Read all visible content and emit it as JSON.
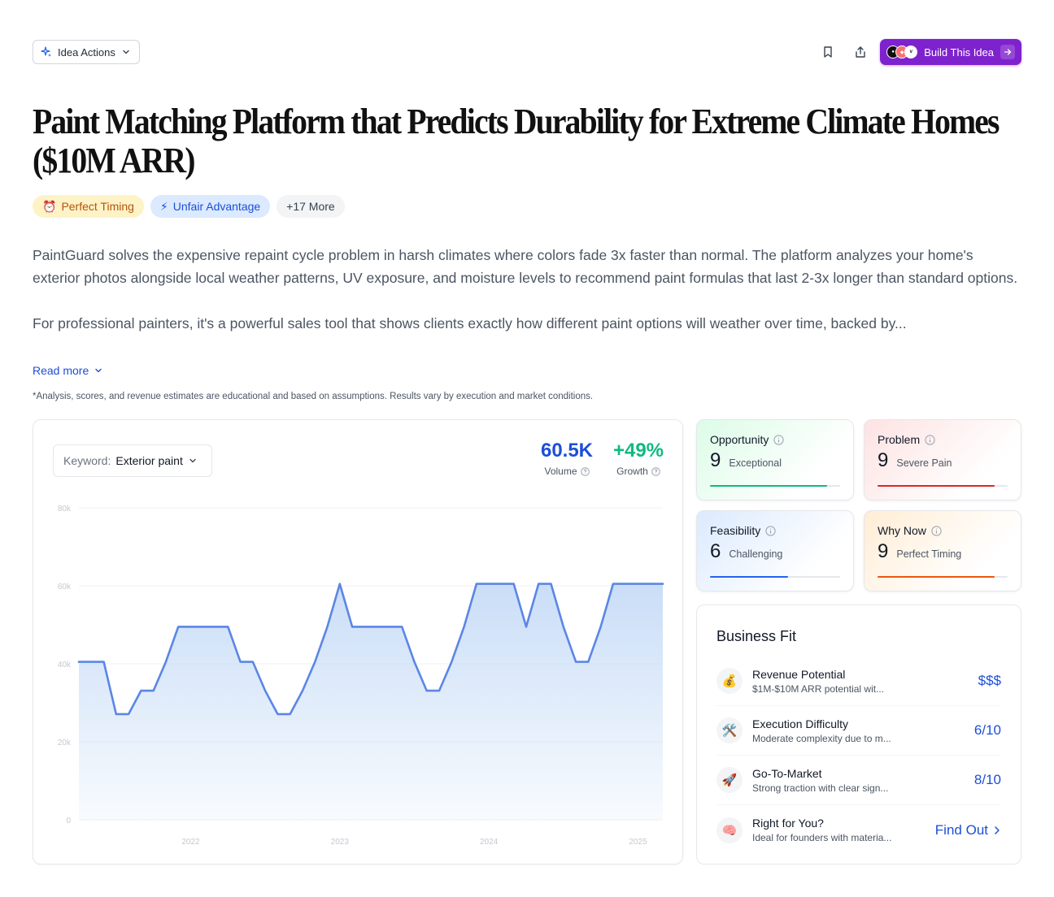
{
  "toolbar": {
    "idea_actions_label": "Idea Actions",
    "build_label": "Build This Idea"
  },
  "title": {
    "line1": "Paint Matching Platform that Predicts Durability for Extreme Climate Homes",
    "line2": "($10M ARR)"
  },
  "tags": [
    {
      "icon": "⏰",
      "label": "Perfect Timing"
    },
    {
      "icon": "⚡",
      "label": "Unfair Advantage"
    },
    {
      "label": "+17 More"
    }
  ],
  "description": {
    "p1": "PaintGuard solves the expensive repaint cycle problem in harsh climates where colors fade 3x faster than normal. The platform analyzes your home's exterior photos alongside local weather patterns, UV exposure, and moisture levels to recommend paint formulas that last 2-3x longer than standard options.",
    "p2": "For professional painters, it's a powerful sales tool that shows clients exactly how different paint options will weather over time, backed by...",
    "read_more": "Read more"
  },
  "disclaimer": "*Analysis, scores, and revenue estimates are educational and based on assumptions. Results vary by execution and market conditions.",
  "keyword": {
    "label": "Keyword:",
    "value": "Exterior paint"
  },
  "metrics": {
    "volume": {
      "value": "60.5K",
      "label": "Volume"
    },
    "growth": {
      "value": "+49%",
      "label": "Growth"
    }
  },
  "chart_data": {
    "type": "area",
    "title": "",
    "xlabel": "",
    "ylabel": "",
    "ylim": [
      0,
      80000
    ],
    "y_ticks": [
      "0",
      "20k",
      "40k",
      "60k",
      "80k"
    ],
    "x_ticks": [
      "2022",
      "2023",
      "2024",
      "2025"
    ],
    "x_range": [
      "2021-07",
      "2025-06"
    ],
    "grid": true,
    "color": "#5b86e5",
    "fill_color": "#c7dcf7",
    "series": [
      {
        "x": [
          "2021-07",
          "2021-08",
          "2021-09",
          "2021-10",
          "2021-11",
          "2021-12",
          "2022-01",
          "2022-02",
          "2022-03",
          "2022-04",
          "2022-05",
          "2022-06",
          "2022-07",
          "2022-08",
          "2022-09",
          "2022-10",
          "2022-11",
          "2022-12",
          "2023-01",
          "2023-02",
          "2023-03",
          "2023-04",
          "2023-05",
          "2023-06",
          "2023-07",
          "2023-08",
          "2023-09",
          "2023-10",
          "2023-11",
          "2023-12",
          "2024-01",
          "2024-02",
          "2024-03",
          "2024-04",
          "2024-05",
          "2024-06",
          "2024-07",
          "2024-08",
          "2024-09",
          "2024-10",
          "2024-11",
          "2024-12",
          "2025-01",
          "2025-02",
          "2025-03",
          "2025-04",
          "2025-05",
          "2025-06"
        ],
        "values": [
          40500,
          40500,
          40500,
          27100,
          27100,
          33100,
          33100,
          40500,
          49500,
          49500,
          49500,
          49500,
          49500,
          40500,
          40500,
          33100,
          27100,
          27100,
          33100,
          40500,
          49500,
          60500,
          49500,
          49500,
          49500,
          49500,
          49500,
          40500,
          33100,
          33100,
          40500,
          49500,
          60500,
          60500,
          60500,
          60500,
          49500,
          60500,
          60500,
          49500,
          40500,
          40500,
          49500,
          60500,
          60500,
          60500,
          60500,
          60500
        ]
      }
    ]
  },
  "scores": {
    "opportunity": {
      "title": "Opportunity",
      "value": "9",
      "desc": "Exceptional",
      "fraction": 0.9,
      "color": "#10b981"
    },
    "problem": {
      "title": "Problem",
      "value": "9",
      "desc": "Severe Pain",
      "fraction": 0.9,
      "color": "#dc2626"
    },
    "feasibility": {
      "title": "Feasibility",
      "value": "6",
      "desc": "Challenging",
      "fraction": 0.6,
      "color": "#2563eb"
    },
    "why_now": {
      "title": "Why Now",
      "value": "9",
      "desc": "Perfect Timing",
      "fraction": 0.9,
      "color": "#ea580c"
    }
  },
  "business_fit": {
    "title": "Business Fit",
    "rows": [
      {
        "icon": "💰",
        "label": "Revenue Potential",
        "sub": "$1M-$10M ARR potential wit...",
        "value": "$$$"
      },
      {
        "icon": "🛠️",
        "label": "Execution Difficulty",
        "sub": "Moderate complexity due to m...",
        "value": "6/10"
      },
      {
        "icon": "🚀",
        "label": "Go-To-Market",
        "sub": "Strong traction with clear sign...",
        "value": "8/10"
      },
      {
        "icon": "🧠",
        "label": "Right for You?",
        "sub": "Ideal for founders with materia...",
        "value": "Find Out"
      }
    ]
  }
}
